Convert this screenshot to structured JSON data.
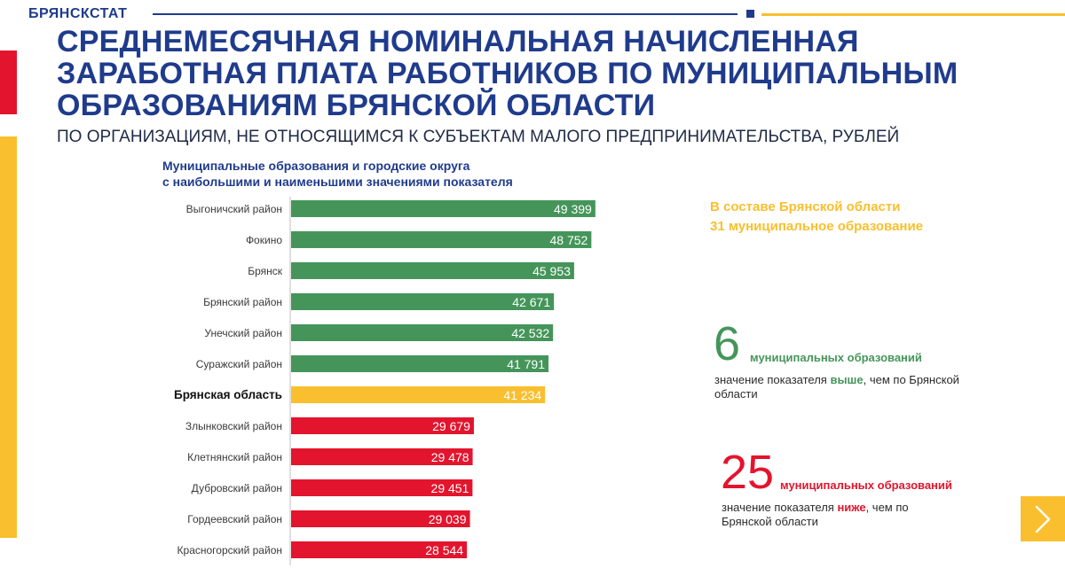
{
  "header": {
    "brand": "БРЯНСКСТАТ",
    "title": "СРЕДНЕМЕСЯЧНАЯ НОМИНАЛЬНАЯ НАЧИСЛЕННАЯ ЗАРАБОТНАЯ ПЛАТА РАБОТНИКОВ ПО МУНИЦИПАЛЬНЫМ ОБРАЗОВАНИЯМ БРЯНСКОЙ ОБЛАСТИ",
    "subtitle": "ПО ОРГАНИЗАЦИЯМ, НЕ ОТНОСЯЩИМСЯ К СУБЪЕКТАМ МАЛОГО ПРЕДПРИНИМАТЕЛЬСТВА, РУБЛЕЙ"
  },
  "chart_heading": {
    "line1": "Муниципальные образования и городские округа",
    "line2": "с наибольшими и наименьшими значениями показателя"
  },
  "chart_data": {
    "type": "bar",
    "orientation": "horizontal",
    "title": "Муниципальные образования и городские округа с наибольшими и наименьшими значениями показателя",
    "xlabel": "",
    "ylabel": "",
    "xlim": [
      0,
      50000
    ],
    "categories": [
      "Выгоничский район",
      "Фокино",
      "Брянск",
      "Брянский район",
      "Унечский район",
      "Суражский район",
      "Брянская область",
      "Злынковский район",
      "Клетнянский район",
      "Дубровский район",
      "Гордеевский район",
      "Красногорский район"
    ],
    "values": [
      49399,
      48752,
      45953,
      42671,
      42532,
      41791,
      41234,
      29679,
      29478,
      29451,
      29039,
      28544
    ],
    "value_labels": [
      "49 399",
      "48 752",
      "45 953",
      "42 671",
      "42 532",
      "41 791",
      "41 234",
      "29 679",
      "29 478",
      "29 451",
      "29 039",
      "28 544"
    ],
    "groups": [
      "above",
      "above",
      "above",
      "above",
      "above",
      "above",
      "region",
      "below",
      "below",
      "below",
      "below",
      "below"
    ],
    "colors": {
      "above": "#45955a",
      "region": "#f9bf2e",
      "below": "#e3142d"
    }
  },
  "info": {
    "total_line1": "В составе Брянской области",
    "total_line2": "31 муниципальное образование",
    "above": {
      "number": "6",
      "label": "муниципальных образований",
      "desc_before": "значение показателя ",
      "desc_bold": "выше",
      "desc_after": ", чем по Брянской области"
    },
    "below": {
      "number": "25",
      "label": "муниципальных образований",
      "desc_before": "значение показателя ",
      "desc_bold": "ниже",
      "desc_after": ", чем по Брянской области"
    }
  },
  "nav": {
    "next_icon": "chevron-right-icon"
  },
  "colors": {
    "blue": "#1f3b8c",
    "red": "#e3142d",
    "yellow": "#f9bf2e",
    "green": "#45955a"
  }
}
